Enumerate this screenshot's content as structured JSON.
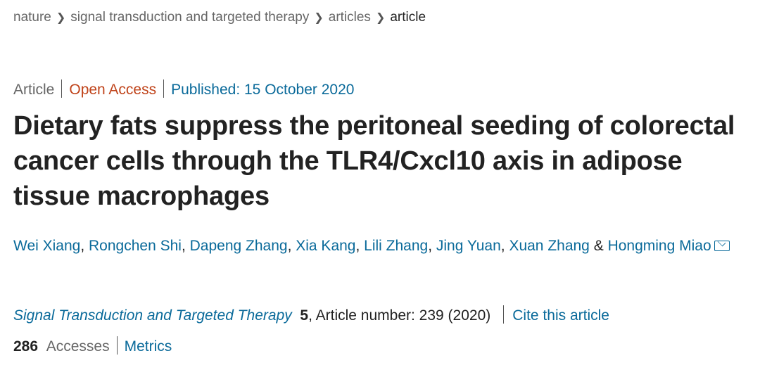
{
  "breadcrumb": [
    "nature",
    "signal transduction and targeted therapy",
    "articles",
    "article"
  ],
  "meta": {
    "type": "Article",
    "access": "Open Access",
    "published": "Published: 15 October 2020"
  },
  "title": "Dietary fats suppress the peritoneal seeding of colorectal cancer cells through the TLR4/Cxcl10 axis in adipose tissue macrophages",
  "authors": [
    "Wei Xiang",
    "Rongchen Shi",
    "Dapeng Zhang",
    "Xia Kang",
    "Lili Zhang",
    "Jing Yuan",
    "Xuan Zhang",
    "Hongming Miao"
  ],
  "author_sep": ", ",
  "author_last_sep": " & ",
  "citation": {
    "journal": "Signal Transduction and Targeted Therapy",
    "volume": "5",
    "rest": ", Article number: 239 (2020)",
    "cite_link": "Cite this article"
  },
  "stats": {
    "accesses_count": "286",
    "accesses_label": "Accesses",
    "metrics_link": "Metrics"
  },
  "colors": {
    "link": "#0a6a9a",
    "open_access": "#c0441b",
    "text": "#222222",
    "muted": "#666666"
  },
  "icons": {
    "breadcrumb_separator": "chevron-right-icon",
    "email": "envelope-icon"
  }
}
